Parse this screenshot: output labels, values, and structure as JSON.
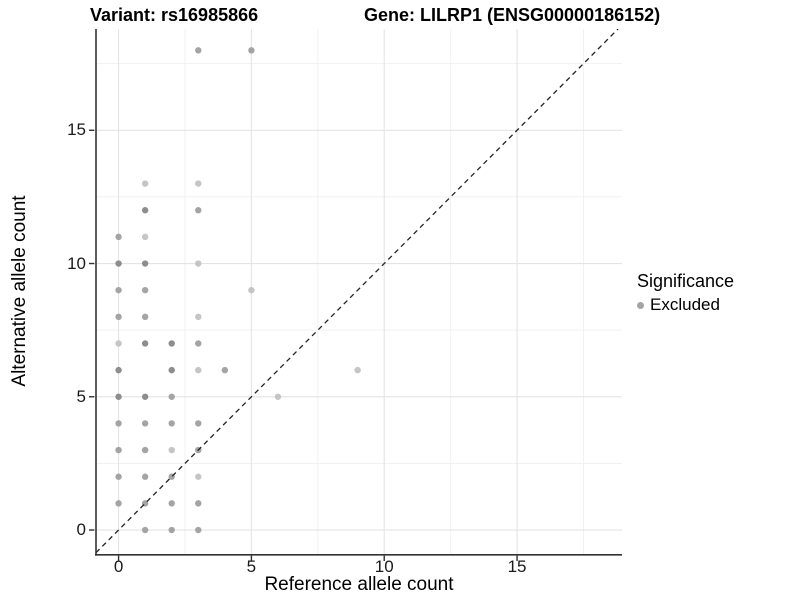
{
  "styles": {
    "background": "#ffffff",
    "grid_major": "#e4e4e4",
    "grid_minor": "#f1f1f1",
    "axis_line": "#333333",
    "tick_color": "#333333",
    "dashed_line": "#222222",
    "text": "#000000"
  },
  "chart_data": {
    "type": "scatter",
    "titles": {
      "left": "Variant: rs16985866",
      "right": "Gene: LILRP1 (ENSG00000186152)"
    },
    "xlabel": "Reference allele count",
    "ylabel": "Alternative allele count",
    "xlim": [
      -0.85,
      18.95
    ],
    "ylim": [
      -0.9,
      18.8
    ],
    "x_ticks": [
      "0",
      "5",
      "10",
      "15"
    ],
    "x_tick_values": [
      0,
      5,
      10,
      15
    ],
    "y_ticks": [
      "0",
      "5",
      "10",
      "15"
    ],
    "y_tick_values": [
      0,
      5,
      10,
      15
    ],
    "x_minor": [
      2.5,
      7.5,
      12.5,
      17.5
    ],
    "y_minor": [
      2.5,
      7.5,
      12.5,
      17.5
    ],
    "grid": "major+minor",
    "identity_line": {
      "style": "dashed",
      "slope": 1,
      "intercept": 0
    },
    "legend": {
      "title": "Significance",
      "position": "right",
      "items": [
        {
          "label": "Excluded",
          "color": "#a4a4a4"
        }
      ]
    },
    "point_radius": 3.2,
    "point_colors": {
      "1": "#c5c5c5",
      "2": "#a4a4a4",
      "3": "#8d8d8d"
    },
    "series": [
      {
        "name": "Excluded",
        "points": [
          [
            3,
            18,
            2
          ],
          [
            5,
            18,
            2
          ],
          [
            1,
            13,
            1
          ],
          [
            3,
            13,
            1
          ],
          [
            1,
            12,
            3
          ],
          [
            3,
            12,
            2
          ],
          [
            0,
            11,
            2
          ],
          [
            1,
            11,
            1
          ],
          [
            0,
            10,
            3
          ],
          [
            1,
            10,
            3
          ],
          [
            3,
            10,
            1
          ],
          [
            0,
            9,
            2
          ],
          [
            1,
            9,
            2
          ],
          [
            5,
            9,
            1
          ],
          [
            0,
            8,
            2
          ],
          [
            1,
            8,
            2
          ],
          [
            3,
            8,
            1
          ],
          [
            0,
            7,
            1
          ],
          [
            1,
            7,
            3
          ],
          [
            2,
            7,
            3
          ],
          [
            3,
            7,
            2
          ],
          [
            0,
            6,
            3
          ],
          [
            2,
            6,
            3
          ],
          [
            3,
            6,
            1
          ],
          [
            4,
            6,
            2
          ],
          [
            9,
            6,
            1
          ],
          [
            0,
            5,
            3
          ],
          [
            1,
            5,
            3
          ],
          [
            2,
            5,
            2
          ],
          [
            6,
            5,
            1
          ],
          [
            0,
            4,
            2
          ],
          [
            1,
            4,
            2
          ],
          [
            2,
            4,
            2
          ],
          [
            3,
            4,
            2
          ],
          [
            0,
            3,
            2
          ],
          [
            1,
            3,
            2
          ],
          [
            2,
            3,
            1
          ],
          [
            3,
            3,
            2
          ],
          [
            0,
            2,
            2
          ],
          [
            1,
            2,
            2
          ],
          [
            2,
            2,
            2
          ],
          [
            3,
            2,
            1
          ],
          [
            0,
            1,
            2
          ],
          [
            1,
            1,
            2
          ],
          [
            2,
            1,
            2
          ],
          [
            3,
            1,
            2
          ],
          [
            1,
            0,
            2
          ],
          [
            2,
            0,
            2
          ],
          [
            3,
            0,
            2
          ]
        ]
      }
    ]
  }
}
